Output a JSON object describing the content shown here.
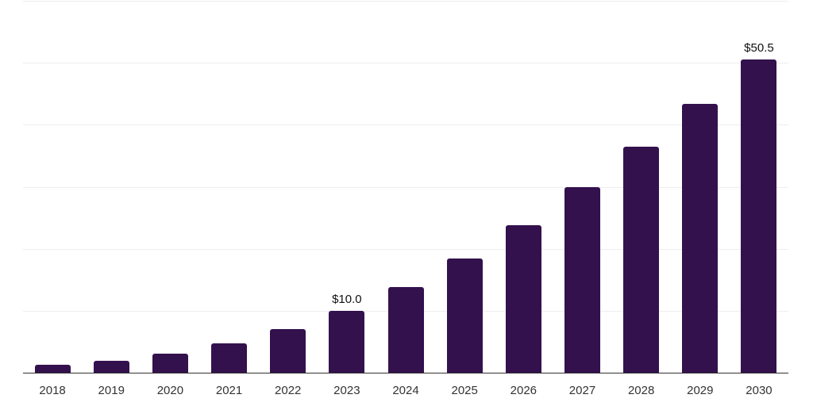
{
  "chart_data": {
    "type": "bar",
    "title": "",
    "xlabel": "",
    "ylabel": "",
    "categories": [
      "2018",
      "2019",
      "2020",
      "2021",
      "2022",
      "2023",
      "2024",
      "2025",
      "2026",
      "2027",
      "2028",
      "2029",
      "2030"
    ],
    "values": [
      1.3,
      1.9,
      3.1,
      4.7,
      7.0,
      10.0,
      13.8,
      18.4,
      23.8,
      29.9,
      36.5,
      43.4,
      50.5
    ],
    "point_labels": [
      "",
      "",
      "",
      "",
      "",
      "$10.0",
      "",
      "",
      "",
      "",
      "",
      "",
      "$50.5"
    ],
    "ylim": [
      0,
      60
    ],
    "gridline_step": 10,
    "grid": "horizontal",
    "legend": "none",
    "y_axis_tick_labels_visible": false,
    "colors": {
      "bar": "#33114d",
      "axis_line": "#333333",
      "gridline": "#ededed",
      "tick_label": "#333333",
      "data_label": "#111111",
      "background": "#ffffff"
    }
  }
}
